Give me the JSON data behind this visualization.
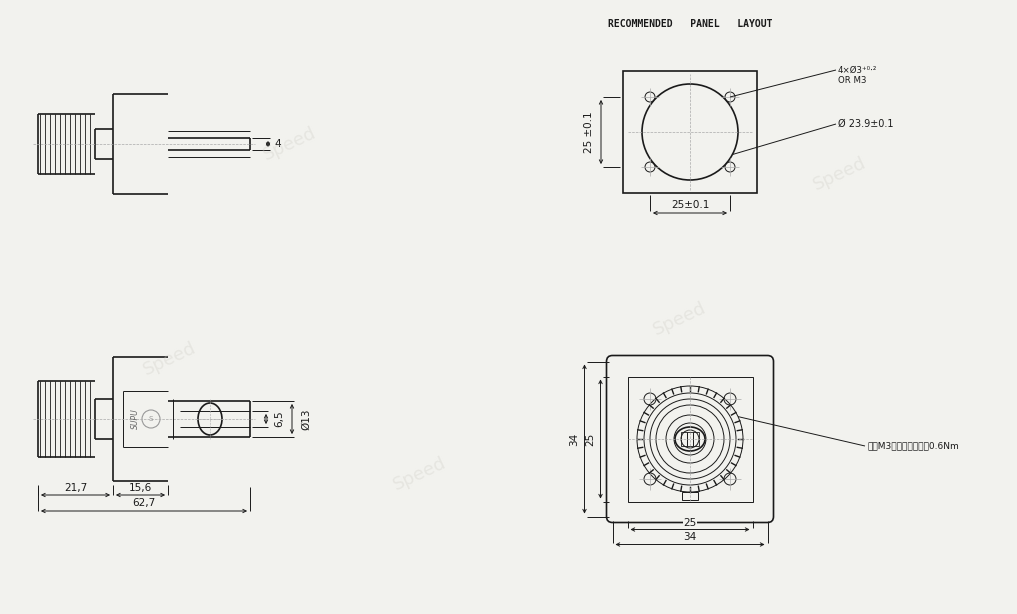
{
  "bg_color": "#f2f2ee",
  "line_color": "#1a1a1a",
  "dim_color": "#1a1a1a",
  "watermark_color": "#d0cfc8",
  "title_bottom": "RECOMMENDED   PANEL   LAYOUT",
  "annotation_screw": "推荐M3组合螺丝，扭矠0.6Nm",
  "annotation_dia": "Ø 23.9±0.1",
  "annotation_hole_line1": "4×Ø3⁺⁰⋅²",
  "annotation_hole_line2": "OR M3",
  "dim_627": "62,7",
  "dim_217": "21,7",
  "dim_156": "15,6",
  "dim_65": "6,5",
  "dim_phi13": "Ø13",
  "dim_34_top": "34",
  "dim_25_top": "25",
  "dim_34_side": "34",
  "dim_25_side": "25",
  "dim_4": "4",
  "dim_25pm": "25±0.1",
  "dim_25pm2": "25 ±0.1"
}
